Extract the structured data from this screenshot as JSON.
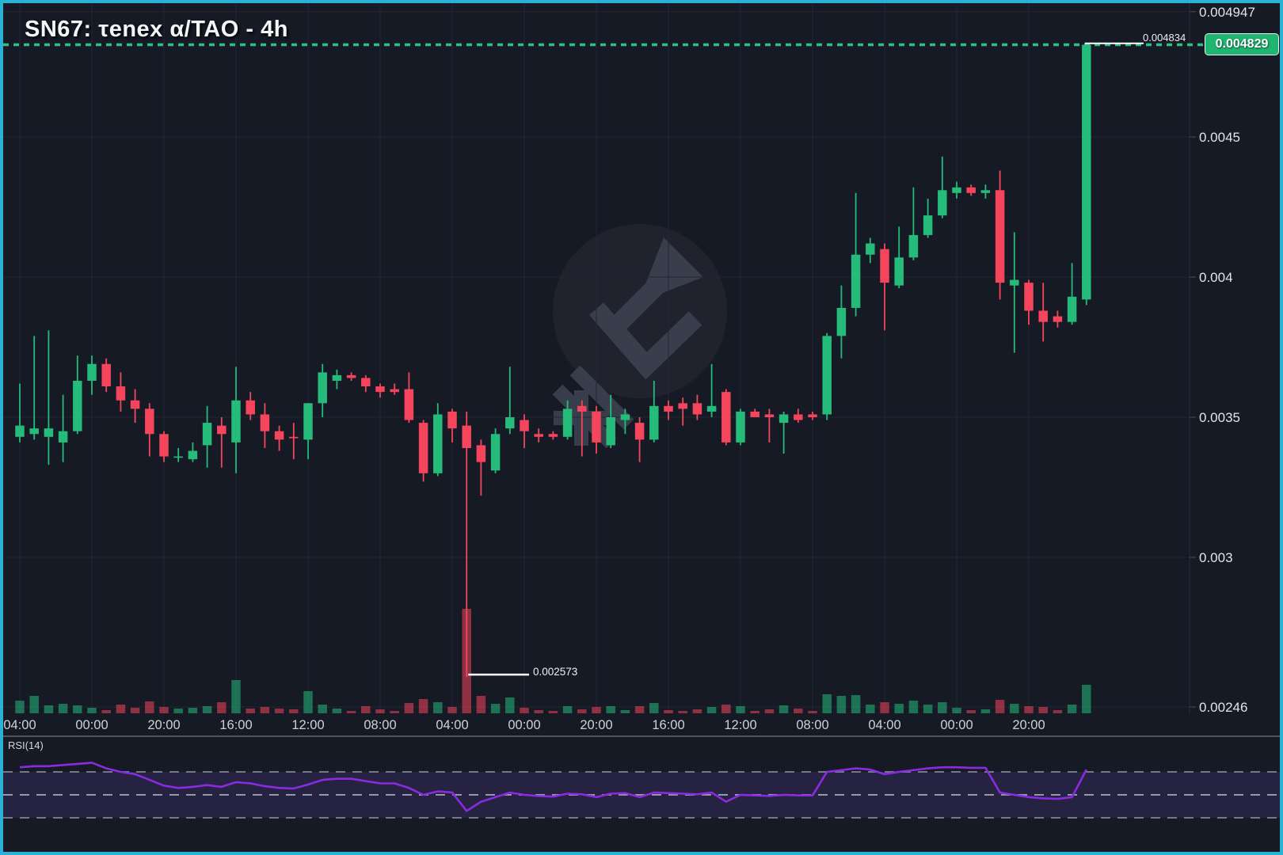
{
  "title": "SN67: τenex α/TAO - 4h",
  "rsi_label": "RSI(14)",
  "colors": {
    "background": "#161a25",
    "frame_border": "#29b2d6",
    "bull": "#24bb7b",
    "bear": "#f5455c",
    "badge_green": "#21b573",
    "grid": "#212734",
    "axis_text": "#e2e4e9",
    "rsi_line": "#8a2be2",
    "rsi_band_fill": "rgba(122,80,220,0.16)",
    "rsi_dash": "#9aa0ad",
    "dotted_price_line": "#2bc184",
    "white_line": "#ffffff",
    "watermark": "#3c4250"
  },
  "chart_data": {
    "type": "candlestick",
    "symbol": "SN67: τenex α/TAO",
    "interval": "4h",
    "title": "SN67: τenex α/TAO - 4h",
    "y_axis_ticks": [
      {
        "text": "0.004947",
        "value": 0.004947
      },
      {
        "text": "0.0045",
        "value": 0.0045
      },
      {
        "text": "0.004",
        "value": 0.004
      },
      {
        "text": "0.0035",
        "value": 0.0035
      },
      {
        "text": "0.003",
        "value": 0.003
      },
      {
        "text": "0.00246",
        "value": 0.002466
      }
    ],
    "x_axis_ticks": [
      "04:00",
      "00:00",
      "20:00",
      "16:00",
      "12:00",
      "08:00",
      "04:00",
      "00:00",
      "20:00",
      "16:00",
      "12:00",
      "08:00",
      "04:00",
      "00:00",
      "20:00"
    ],
    "ticks_every_n_candles": 5,
    "ylim": [
      0.002466,
      0.004947
    ],
    "grid": true,
    "candles": {
      "open": [
        0.00343,
        0.00344,
        0.00343,
        0.00341,
        0.00345,
        0.00363,
        0.00369,
        0.00361,
        0.00356,
        0.00353,
        0.00344,
        0.00336,
        0.00335,
        0.0034,
        0.00347,
        0.00341,
        0.00356,
        0.00351,
        0.00345,
        0.00343,
        0.00342,
        0.00355,
        0.00363,
        0.00365,
        0.00364,
        0.00361,
        0.0036,
        0.0036,
        0.00348,
        0.0033,
        0.00352,
        0.00347,
        0.0034,
        0.00331,
        0.00346,
        0.00349,
        0.00344,
        0.00344,
        0.00343,
        0.00354,
        0.00352,
        0.0034,
        0.00349,
        0.00348,
        0.00342,
        0.00354,
        0.00355,
        0.00355,
        0.00352,
        0.00359,
        0.00341,
        0.00352,
        0.00351,
        0.00348,
        0.00351,
        0.00351,
        0.00351,
        0.00379,
        0.00389,
        0.00408,
        0.0041,
        0.00397,
        0.00407,
        0.00415,
        0.00422,
        0.0043,
        0.00432,
        0.0043,
        0.00431,
        0.00397,
        0.00398,
        0.00388,
        0.00386,
        0.00384,
        0.00392
      ],
      "high": [
        0.00362,
        0.00379,
        0.00381,
        0.00358,
        0.00372,
        0.00372,
        0.00371,
        0.00366,
        0.0036,
        0.00355,
        0.00345,
        0.00339,
        0.00341,
        0.00354,
        0.0035,
        0.00368,
        0.00359,
        0.00355,
        0.00347,
        0.00348,
        0.00355,
        0.00369,
        0.00367,
        0.00366,
        0.00365,
        0.00362,
        0.00362,
        0.00366,
        0.00349,
        0.00355,
        0.00353,
        0.00352,
        0.00342,
        0.00346,
        0.00368,
        0.00351,
        0.00346,
        0.00345,
        0.00356,
        0.00356,
        0.00354,
        0.00358,
        0.00353,
        0.0035,
        0.00363,
        0.00356,
        0.00357,
        0.00358,
        0.00369,
        0.0036,
        0.00353,
        0.00353,
        0.00353,
        0.00352,
        0.00353,
        0.00352,
        0.0038,
        0.00397,
        0.0043,
        0.00414,
        0.00412,
        0.00418,
        0.00432,
        0.00428,
        0.00443,
        0.00434,
        0.00433,
        0.00433,
        0.00438,
        0.00416,
        0.00399,
        0.00398,
        0.00388,
        0.00405,
        0.004834
      ],
      "low": [
        0.00341,
        0.00342,
        0.00333,
        0.00334,
        0.00344,
        0.00358,
        0.00359,
        0.00352,
        0.00348,
        0.00336,
        0.00334,
        0.00334,
        0.00334,
        0.00332,
        0.00332,
        0.0033,
        0.00349,
        0.00339,
        0.00338,
        0.00335,
        0.00335,
        0.0035,
        0.0036,
        0.00363,
        0.00359,
        0.00357,
        0.00358,
        0.00348,
        0.00327,
        0.00329,
        0.00341,
        0.002573,
        0.00322,
        0.0033,
        0.00344,
        0.00339,
        0.00341,
        0.00342,
        0.00342,
        0.00336,
        0.00337,
        0.00339,
        0.00344,
        0.00334,
        0.00341,
        0.00349,
        0.00347,
        0.00349,
        0.0035,
        0.0034,
        0.0034,
        0.0035,
        0.00341,
        0.00337,
        0.00348,
        0.00349,
        0.00349,
        0.00371,
        0.00386,
        0.00405,
        0.00381,
        0.00396,
        0.00406,
        0.00414,
        0.00421,
        0.00428,
        0.00429,
        0.00428,
        0.00392,
        0.00373,
        0.00383,
        0.00377,
        0.00382,
        0.00383,
        0.0039
      ],
      "close": [
        0.00347,
        0.00346,
        0.00346,
        0.00345,
        0.00363,
        0.00369,
        0.00361,
        0.00356,
        0.00353,
        0.00344,
        0.00336,
        0.00336,
        0.00338,
        0.00348,
        0.00344,
        0.00356,
        0.00351,
        0.00345,
        0.00342,
        0.003425,
        0.00355,
        0.00366,
        0.00365,
        0.00364,
        0.00361,
        0.00359,
        0.00359,
        0.00349,
        0.0033,
        0.00351,
        0.00346,
        0.00339,
        0.00334,
        0.00344,
        0.0035,
        0.00345,
        0.00343,
        0.00343,
        0.00353,
        0.00352,
        0.00341,
        0.0035,
        0.00351,
        0.00342,
        0.00354,
        0.00352,
        0.00353,
        0.00351,
        0.00354,
        0.00341,
        0.00352,
        0.0035,
        0.0035,
        0.00351,
        0.00349,
        0.0035,
        0.00379,
        0.00389,
        0.00408,
        0.00412,
        0.00398,
        0.00407,
        0.00415,
        0.00422,
        0.00431,
        0.00432,
        0.0043,
        0.00431,
        0.00398,
        0.00399,
        0.00388,
        0.00384,
        0.00384,
        0.00393,
        0.004829
      ],
      "volume_rel": [
        16,
        22,
        10,
        12,
        10,
        7,
        4,
        11,
        7,
        15,
        8,
        6,
        7,
        9,
        14,
        42,
        6,
        8,
        6,
        5,
        28,
        11,
        6,
        3,
        9,
        5,
        3,
        13,
        18,
        14,
        8,
        132,
        22,
        12,
        20,
        7,
        4,
        3,
        9,
        5,
        8,
        9,
        4,
        9,
        13,
        4,
        3,
        5,
        8,
        11,
        9,
        3,
        5,
        10,
        6,
        3,
        24,
        22,
        23,
        11,
        14,
        12,
        16,
        11,
        14,
        7,
        4,
        5,
        17,
        12,
        9,
        8,
        4,
        11,
        36
      ]
    },
    "rsi": {
      "period": 14,
      "label": "RSI(14)",
      "levels": [
        70,
        50,
        30
      ],
      "values": [
        74,
        75,
        75,
        76,
        77,
        78,
        73,
        70,
        68,
        63,
        58,
        56,
        57,
        58.5,
        57,
        61,
        60,
        57.5,
        56,
        55.5,
        59,
        63,
        64,
        64,
        62,
        60,
        60,
        56,
        50,
        53,
        52,
        36,
        44,
        48,
        52,
        50,
        49,
        48.5,
        51,
        50.5,
        48,
        51,
        51.5,
        48,
        52,
        51.5,
        51,
        50.5,
        52,
        44,
        50,
        49.5,
        49,
        50,
        49.5,
        49.5,
        70,
        71.5,
        73,
        72,
        68,
        70,
        71.5,
        73,
        74,
        74,
        73.5,
        73.5,
        52,
        50,
        48,
        47,
        46.5,
        48,
        72
      ]
    },
    "annotations": {
      "last_price": "0.004829",
      "high_label": "0.004834",
      "low_label": "0.002573",
      "low_value": 0.002573,
      "last_price_value": 0.004829,
      "high_value": 0.004834
    }
  }
}
